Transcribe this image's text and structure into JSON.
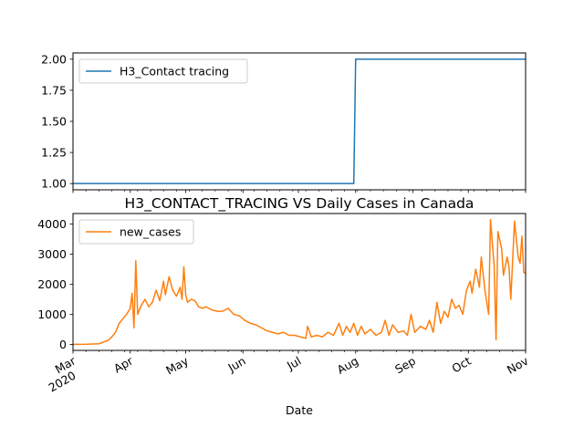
{
  "chart_data": [
    {
      "type": "line",
      "title": "",
      "xlabel": "",
      "ylabel": "",
      "ylim": [
        0.95,
        2.05
      ],
      "yticks": [
        "1.00",
        "1.25",
        "1.50",
        "1.75",
        "2.00"
      ],
      "ytick_values": [
        1.0,
        1.25,
        1.5,
        1.75,
        2.0
      ],
      "legend_placement": "upper left",
      "grid": false,
      "series": [
        {
          "name": "H3_Contact tracing",
          "color": "#1f77b4",
          "points": [
            [
              "2020-03-01",
              1
            ],
            [
              "2020-07-31",
              1
            ],
            [
              "2020-08-01",
              2
            ],
            [
              "2020-11-01",
              2
            ]
          ]
        }
      ]
    },
    {
      "type": "line",
      "title": "H3_CONTACT_TRACING VS Daily Cases in Canada",
      "xlabel": "Date",
      "ylabel": "",
      "ylim": [
        -200,
        4350
      ],
      "yticks": [
        "0",
        "1000",
        "2000",
        "3000",
        "4000"
      ],
      "ytick_values": [
        0,
        1000,
        2000,
        3000,
        4000
      ],
      "legend_placement": "upper left",
      "grid": false,
      "x_tick_labels": [
        {
          "date": "2020-03-01",
          "label": "Mar",
          "year": "2020"
        },
        {
          "date": "2020-04-01",
          "label": "Apr"
        },
        {
          "date": "2020-05-01",
          "label": "May"
        },
        {
          "date": "2020-06-01",
          "label": "Jun"
        },
        {
          "date": "2020-07-01",
          "label": "Jul"
        },
        {
          "date": "2020-08-01",
          "label": "Aug"
        },
        {
          "date": "2020-09-01",
          "label": "Sep"
        },
        {
          "date": "2020-10-01",
          "label": "Oct"
        },
        {
          "date": "2020-11-01",
          "label": "Nov"
        }
      ],
      "series": [
        {
          "name": "new_cases",
          "color": "#ff7f0e",
          "points": [
            [
              "2020-03-01",
              0
            ],
            [
              "2020-03-08",
              5
            ],
            [
              "2020-03-15",
              20
            ],
            [
              "2020-03-18",
              90
            ],
            [
              "2020-03-20",
              130
            ],
            [
              "2020-03-22",
              250
            ],
            [
              "2020-03-24",
              400
            ],
            [
              "2020-03-26",
              700
            ],
            [
              "2020-03-28",
              850
            ],
            [
              "2020-03-30",
              1000
            ],
            [
              "2020-04-01",
              1200
            ],
            [
              "2020-04-02",
              1700
            ],
            [
              "2020-04-03",
              550
            ],
            [
              "2020-04-04",
              2780
            ],
            [
              "2020-04-05",
              1000
            ],
            [
              "2020-04-07",
              1300
            ],
            [
              "2020-04-09",
              1500
            ],
            [
              "2020-04-11",
              1250
            ],
            [
              "2020-04-13",
              1400
            ],
            [
              "2020-04-15",
              1800
            ],
            [
              "2020-04-17",
              1450
            ],
            [
              "2020-04-19",
              2100
            ],
            [
              "2020-04-20",
              1650
            ],
            [
              "2020-04-22",
              2250
            ],
            [
              "2020-04-24",
              1800
            ],
            [
              "2020-04-26",
              1600
            ],
            [
              "2020-04-28",
              1900
            ],
            [
              "2020-04-29",
              1500
            ],
            [
              "2020-04-30",
              2580
            ],
            [
              "2020-05-01",
              1650
            ],
            [
              "2020-05-02",
              1400
            ],
            [
              "2020-05-04",
              1500
            ],
            [
              "2020-05-06",
              1450
            ],
            [
              "2020-05-08",
              1250
            ],
            [
              "2020-05-10",
              1200
            ],
            [
              "2020-05-12",
              1250
            ],
            [
              "2020-05-15",
              1150
            ],
            [
              "2020-05-18",
              1100
            ],
            [
              "2020-05-21",
              1100
            ],
            [
              "2020-05-24",
              1200
            ],
            [
              "2020-05-27",
              1000
            ],
            [
              "2020-05-30",
              950
            ],
            [
              "2020-06-02",
              800
            ],
            [
              "2020-06-05",
              700
            ],
            [
              "2020-06-08",
              650
            ],
            [
              "2020-06-11",
              550
            ],
            [
              "2020-06-14",
              450
            ],
            [
              "2020-06-17",
              400
            ],
            [
              "2020-06-20",
              350
            ],
            [
              "2020-06-23",
              400
            ],
            [
              "2020-06-26",
              300
            ],
            [
              "2020-06-29",
              300
            ],
            [
              "2020-07-02",
              250
            ],
            [
              "2020-07-05",
              200
            ],
            [
              "2020-07-06",
              600
            ],
            [
              "2020-07-08",
              250
            ],
            [
              "2020-07-11",
              300
            ],
            [
              "2020-07-14",
              250
            ],
            [
              "2020-07-17",
              400
            ],
            [
              "2020-07-20",
              300
            ],
            [
              "2020-07-23",
              700
            ],
            [
              "2020-07-25",
              300
            ],
            [
              "2020-07-27",
              600
            ],
            [
              "2020-07-29",
              400
            ],
            [
              "2020-07-31",
              700
            ],
            [
              "2020-08-02",
              300
            ],
            [
              "2020-08-04",
              600
            ],
            [
              "2020-08-06",
              350
            ],
            [
              "2020-08-09",
              500
            ],
            [
              "2020-08-12",
              300
            ],
            [
              "2020-08-15",
              400
            ],
            [
              "2020-08-17",
              800
            ],
            [
              "2020-08-19",
              300
            ],
            [
              "2020-08-21",
              650
            ],
            [
              "2020-08-24",
              400
            ],
            [
              "2020-08-27",
              450
            ],
            [
              "2020-08-29",
              300
            ],
            [
              "2020-08-31",
              1000
            ],
            [
              "2020-09-02",
              400
            ],
            [
              "2020-09-05",
              600
            ],
            [
              "2020-09-08",
              500
            ],
            [
              "2020-09-10",
              800
            ],
            [
              "2020-09-12",
              400
            ],
            [
              "2020-09-14",
              1400
            ],
            [
              "2020-09-16",
              700
            ],
            [
              "2020-09-18",
              1100
            ],
            [
              "2020-09-20",
              900
            ],
            [
              "2020-09-22",
              1500
            ],
            [
              "2020-09-24",
              1200
            ],
            [
              "2020-09-26",
              1300
            ],
            [
              "2020-09-28",
              1000
            ],
            [
              "2020-09-30",
              1800
            ],
            [
              "2020-10-02",
              2100
            ],
            [
              "2020-10-03",
              1700
            ],
            [
              "2020-10-05",
              2500
            ],
            [
              "2020-10-07",
              1900
            ],
            [
              "2020-10-08",
              2900
            ],
            [
              "2020-10-10",
              1800
            ],
            [
              "2020-10-12",
              1000
            ],
            [
              "2020-10-13",
              4150
            ],
            [
              "2020-10-15",
              2600
            ],
            [
              "2020-10-16",
              150
            ],
            [
              "2020-10-17",
              3750
            ],
            [
              "2020-10-19",
              3200
            ],
            [
              "2020-10-20",
              2300
            ],
            [
              "2020-10-22",
              2900
            ],
            [
              "2020-10-23",
              2600
            ],
            [
              "2020-10-24",
              1500
            ],
            [
              "2020-10-26",
              4100
            ],
            [
              "2020-10-28",
              2900
            ],
            [
              "2020-10-29",
              2700
            ],
            [
              "2020-10-30",
              3600
            ],
            [
              "2020-10-31",
              2400
            ],
            [
              "2020-11-01",
              2350
            ]
          ]
        }
      ]
    }
  ]
}
